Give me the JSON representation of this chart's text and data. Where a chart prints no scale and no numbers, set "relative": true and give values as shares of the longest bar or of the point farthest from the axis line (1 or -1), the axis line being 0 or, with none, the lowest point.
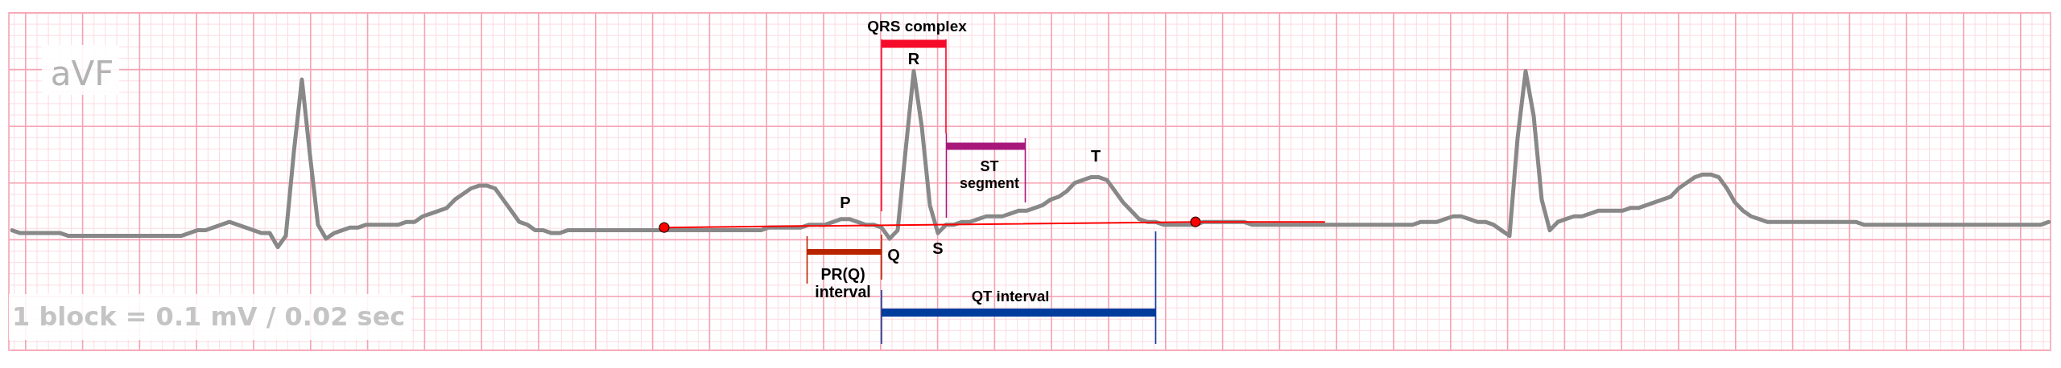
{
  "chart_data": {
    "type": "line",
    "relative": true,
    "grid": true,
    "marker": "none",
    "categories": [
      null,
      null,
      null,
      null,
      null,
      null,
      null,
      null,
      null,
      null,
      null,
      null,
      null,
      null,
      null,
      null,
      null,
      null,
      null,
      null,
      null,
      null,
      null,
      null,
      null,
      null,
      null,
      null,
      null,
      null,
      null,
      null,
      null,
      null,
      null,
      null,
      null,
      null,
      null,
      null,
      null,
      null,
      null,
      null,
      null,
      null,
      null,
      null,
      null,
      null,
      null,
      null,
      null,
      null,
      null,
      null,
      null,
      null,
      null,
      null,
      null,
      null,
      null,
      null,
      null,
      null,
      null,
      null,
      null,
      null,
      null,
      null,
      null,
      null,
      null,
      null,
      null,
      null,
      null,
      null,
      null,
      null,
      null,
      null,
      null,
      null,
      null,
      null,
      null,
      null,
      null,
      null,
      null,
      null,
      null,
      null,
      null,
      null,
      null,
      null,
      null,
      null,
      null,
      null,
      null,
      null,
      null,
      null,
      null,
      null,
      null,
      null,
      null,
      null,
      null,
      null,
      null,
      null,
      null,
      null,
      null,
      null,
      null,
      null,
      null,
      null,
      null,
      null,
      null,
      null,
      null,
      null,
      null,
      null,
      null,
      null,
      null,
      null,
      null,
      null,
      null,
      null,
      null,
      null,
      null,
      null,
      null,
      null,
      null,
      null,
      null,
      null,
      null,
      null,
      null,
      null,
      null,
      null,
      null,
      null,
      null,
      null,
      null,
      null,
      null,
      null,
      null,
      null,
      null,
      null,
      null,
      null,
      null,
      null,
      null,
      null,
      null,
      null,
      null,
      null,
      null,
      null,
      null,
      null,
      null,
      null,
      null,
      null,
      null,
      null,
      null,
      null,
      null,
      null,
      null,
      null,
      null,
      null,
      null,
      null,
      null,
      null,
      null,
      null,
      null,
      null,
      null,
      null,
      null,
      null,
      null,
      null,
      null,
      null,
      null,
      null,
      null,
      null,
      null,
      null,
      null,
      null,
      null,
      null,
      null,
      null,
      null,
      null,
      null,
      null,
      null,
      null,
      null,
      null,
      null,
      null,
      null,
      null,
      null,
      null,
      null,
      null,
      null,
      null,
      null,
      null,
      null,
      null,
      null,
      null,
      null,
      null,
      null,
      null
    ],
    "series": [
      {
        "color": "#888888",
        "values": [
          0.43,
          0.42,
          0.42,
          0.42,
          0.42,
          0.42,
          0.42,
          0.41,
          0.41,
          0.41,
          0.41,
          0.41,
          0.41,
          0.41,
          0.41,
          0.41,
          0.41,
          0.41,
          0.41,
          0.41,
          0.41,
          0.41,
          0.42,
          0.43,
          0.43,
          0.44,
          0.45,
          0.46,
          0.45,
          0.44,
          0.43,
          0.42,
          0.42,
          0.37,
          0.41,
          0.71,
          0.97,
          0.7,
          0.45,
          0.4,
          0.42,
          0.43,
          0.44,
          0.44,
          0.45,
          0.45,
          0.45,
          0.45,
          0.45,
          0.46,
          0.46,
          0.48,
          0.49,
          0.5,
          0.51,
          0.54,
          0.56,
          0.58,
          0.59,
          0.59,
          0.58,
          0.54,
          0.5,
          0.46,
          0.45,
          0.43,
          0.43,
          0.42,
          0.42,
          0.43,
          0.43,
          0.43,
          0.43,
          0.43,
          0.43,
          0.43,
          0.43,
          0.43,
          0.43,
          0.43,
          0.43,
          0.43,
          0.43,
          0.43,
          0.43,
          0.43,
          0.43,
          0.43,
          0.43,
          0.43,
          0.43,
          0.43,
          0.43,
          0.43,
          0.44,
          0.44,
          0.44,
          0.44,
          0.44,
          0.45,
          0.45,
          0.45,
          0.46,
          0.47,
          0.47,
          0.46,
          0.45,
          0.45,
          0.44,
          0.4,
          0.43,
          0.72,
          1.0,
          0.8,
          0.52,
          0.42,
          0.45,
          0.45,
          0.46,
          0.46,
          0.47,
          0.48,
          0.48,
          0.48,
          0.49,
          0.5,
          0.5,
          0.51,
          0.52,
          0.54,
          0.55,
          0.57,
          0.6,
          0.61,
          0.62,
          0.62,
          0.61,
          0.57,
          0.53,
          0.5,
          0.47,
          0.46,
          0.46,
          0.45,
          0.45,
          0.45,
          0.45,
          0.45,
          0.46,
          0.46,
          0.46,
          0.46,
          0.46,
          0.46,
          0.45,
          0.45,
          0.45,
          0.45,
          0.45,
          0.45,
          0.45,
          0.45,
          0.45,
          0.45,
          0.45,
          0.45,
          0.45,
          0.45,
          0.45,
          0.45,
          0.45,
          0.45,
          0.45,
          0.45,
          0.45,
          0.46,
          0.46,
          0.46,
          0.47,
          0.48,
          0.48,
          0.47,
          0.46,
          0.46,
          0.45,
          0.43,
          0.41,
          0.76,
          1.0,
          0.84,
          0.54,
          0.43,
          0.46,
          0.47,
          0.48,
          0.48,
          0.49,
          0.5,
          0.5,
          0.5,
          0.5,
          0.51,
          0.51,
          0.52,
          0.53,
          0.54,
          0.55,
          0.58,
          0.6,
          0.62,
          0.63,
          0.63,
          0.62,
          0.58,
          0.53,
          0.5,
          0.48,
          0.47,
          0.46,
          0.46,
          0.46,
          0.46,
          0.46,
          0.46,
          0.46,
          0.46,
          0.46,
          0.46,
          0.46,
          0.46,
          0.45,
          0.45,
          0.45,
          0.45,
          0.45,
          0.45,
          0.45,
          0.45,
          0.45,
          0.45,
          0.45,
          0.45,
          0.45,
          0.45,
          0.45,
          0.45,
          0.45,
          0.45,
          0.45,
          0.45,
          0.45,
          0.45,
          0.45,
          0.46
        ]
      },
      {
        "color": "#ff0000",
        "marker": "circle",
        "values": [
          null,
          null,
          null,
          null,
          null,
          null,
          null,
          null,
          null,
          null,
          null,
          null,
          null,
          null,
          null,
          null,
          null,
          null,
          null,
          null,
          null,
          null,
          null,
          null,
          null,
          null,
          null,
          null,
          null,
          null,
          null,
          null,
          null,
          null,
          null,
          null,
          null,
          null,
          null,
          null,
          null,
          null,
          null,
          null,
          null,
          null,
          null,
          null,
          null,
          null,
          null,
          null,
          null,
          null,
          null,
          null,
          null,
          null,
          null,
          null,
          null,
          null,
          null,
          null,
          null,
          null,
          null,
          null,
          null,
          null,
          null,
          null,
          null,
          null,
          null,
          null,
          null,
          null,
          null,
          null,
          null,
          0.44,
          null,
          null,
          null,
          null,
          null,
          null,
          null,
          null,
          null,
          null,
          null,
          null,
          null,
          null,
          null,
          null,
          null,
          null,
          null,
          null,
          null,
          null,
          null,
          null,
          null,
          null,
          null,
          null,
          null,
          null,
          null,
          null,
          null,
          null,
          null,
          null,
          null,
          null,
          null,
          null,
          null,
          null,
          null,
          null,
          null,
          null,
          null,
          null,
          null,
          null,
          null,
          null,
          null,
          null,
          null,
          null,
          null,
          null,
          null,
          null,
          null,
          null,
          null,
          null,
          null,
          0.46,
          null,
          null,
          null,
          null,
          null,
          null,
          null,
          null,
          null,
          null,
          null,
          null,
          null,
          null,
          null,
          null,
          null,
          null,
          null,
          null,
          null,
          null,
          null,
          null,
          null,
          null,
          null,
          null,
          null,
          null,
          null,
          null,
          null,
          null,
          null,
          null,
          null,
          null,
          null,
          null,
          null,
          null,
          null,
          null,
          null,
          null,
          null,
          null,
          null,
          null,
          null,
          null,
          null,
          null,
          null,
          null,
          null,
          null,
          null,
          null,
          null,
          null,
          null,
          null,
          null,
          null,
          null,
          null,
          null,
          null,
          null,
          null,
          null,
          null,
          null,
          null,
          null,
          null,
          null,
          null,
          null,
          null,
          null,
          null,
          null,
          null,
          null,
          null,
          null,
          null,
          null,
          null,
          null,
          null,
          null,
          null,
          null,
          null,
          null,
          null,
          null,
          null,
          null,
          null,
          null,
          null
        ]
      },
      {
        "color": "#ff0000",
        "values": [
          null,
          null,
          null,
          null,
          null,
          null,
          null,
          null,
          null,
          null,
          null,
          null,
          null,
          null,
          null,
          null,
          null,
          null,
          null,
          null,
          null,
          null,
          null,
          null,
          null,
          null,
          null,
          null,
          null,
          null,
          null,
          null,
          null,
          null,
          null,
          null,
          null,
          null,
          null,
          null,
          null,
          null,
          null,
          null,
          null,
          null,
          null,
          null,
          null,
          null,
          null,
          null,
          null,
          null,
          null,
          null,
          null,
          null,
          null,
          null,
          null,
          null,
          null,
          null,
          null,
          null,
          null,
          null,
          null,
          null,
          null,
          null,
          null,
          null,
          null,
          null,
          null,
          null,
          null,
          null,
          null,
          null,
          null,
          null,
          null,
          null,
          null,
          null,
          null,
          null,
          null,
          null,
          null,
          null,
          null,
          null,
          null,
          null,
          null,
          null,
          null,
          null,
          null,
          null,
          null,
          null,
          null,
          null,
          null,
          null,
          null,
          null,
          null,
          null,
          null,
          null,
          null,
          null,
          null,
          null,
          null,
          null,
          null,
          null,
          null,
          null,
          null,
          null,
          null,
          null,
          null,
          null,
          null,
          null,
          null,
          null,
          null,
          null,
          null,
          null,
          null,
          null,
          null,
          null,
          null,
          null,
          null,
          0.46,
          null,
          null,
          null,
          null,
          null,
          null,
          null,
          null,
          null,
          null,
          null,
          null,
          null,
          null,
          null,
          0.46,
          null,
          null,
          null,
          null,
          null,
          null,
          null,
          null,
          null,
          null,
          null,
          null,
          null,
          null,
          null,
          null,
          null,
          null,
          null,
          null,
          null,
          null,
          null,
          null,
          null,
          null,
          null,
          null,
          null,
          null,
          null,
          null,
          null,
          null,
          null,
          null,
          null,
          null,
          null,
          null,
          null,
          null,
          null,
          null,
          null,
          null,
          null,
          null,
          null,
          null,
          null,
          null,
          null,
          null,
          null,
          null,
          null,
          null,
          null,
          null,
          null,
          null,
          null,
          null,
          null,
          null,
          null,
          null,
          null,
          null,
          null,
          null,
          null,
          null,
          null,
          null,
          null,
          null,
          null,
          null,
          null,
          null,
          null,
          null,
          null,
          null,
          null,
          null,
          null,
          null
        ]
      }
    ],
    "annotations": [
      "aVF",
      "1 block = 0.1 mV / 0.02 sec",
      "QRS complex",
      "R",
      "P",
      "Q",
      "S",
      "T",
      "ST segment",
      "PR(Q) interval",
      "QT interval"
    ]
  }
}
